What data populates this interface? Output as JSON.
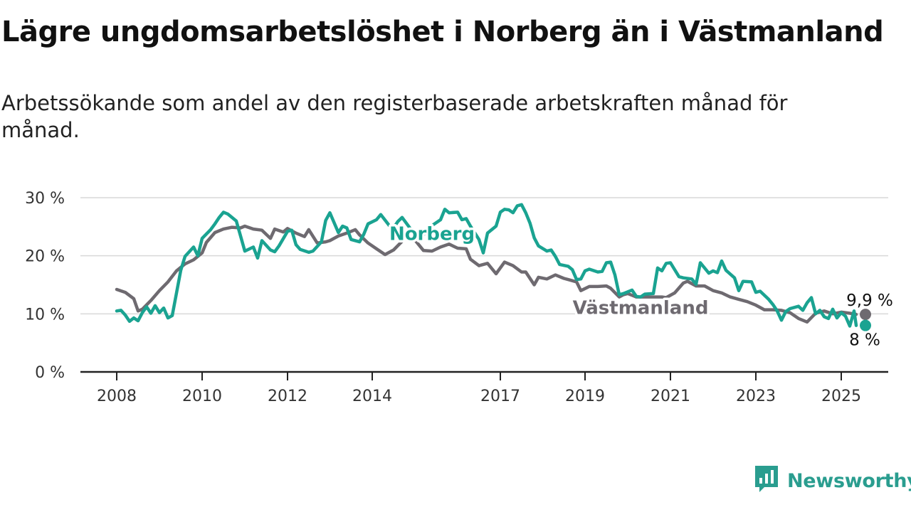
{
  "title": "Lägre ungdomsarbetslöshet i Norberg än i Västmanland",
  "subtitle": "Arbetssökande som andel av den registerbaserade arbetskraften månad för månad.",
  "brand": {
    "name": "Newsworthy",
    "icon": "newsworthy-logo-icon"
  },
  "colors": {
    "norberg": "#1aa391",
    "vastmanland": "#6e6a70",
    "grid": "#d9d9d9",
    "axis": "#222222"
  },
  "chart_data": {
    "type": "line",
    "title": "Lägre ungdomsarbetslöshet i Norberg än i Västmanland",
    "xlabel": "",
    "ylabel": "",
    "xlim": [
      2008.0,
      2025.6
    ],
    "ylim": [
      0,
      30
    ],
    "x_ticks": [
      2008,
      2010,
      2012,
      2014,
      2017,
      2019,
      2021,
      2023,
      2025
    ],
    "x_tick_labels": [
      "2008",
      "2010",
      "2012",
      "2014",
      "2017",
      "2019",
      "2021",
      "2023",
      "2025"
    ],
    "y_ticks": [
      0,
      10,
      20,
      30
    ],
    "y_tick_labels": [
      "0 %",
      "10 %",
      "20 %",
      "30 %"
    ],
    "grid": true,
    "series": [
      {
        "name": "Västmanland",
        "color": "#6e6a70",
        "end_label": "9,9 %",
        "points": [
          [
            2008.0,
            14.2
          ],
          [
            2008.2,
            13.7
          ],
          [
            2008.4,
            12.6
          ],
          [
            2008.5,
            10.5
          ],
          [
            2008.6,
            10.8
          ],
          [
            2008.8,
            12.3
          ],
          [
            2009.0,
            14.0
          ],
          [
            2009.2,
            15.5
          ],
          [
            2009.4,
            17.4
          ],
          [
            2009.6,
            18.6
          ],
          [
            2009.8,
            19.3
          ],
          [
            2010.0,
            20.5
          ],
          [
            2010.1,
            22.3
          ],
          [
            2010.3,
            24.0
          ],
          [
            2010.5,
            24.6
          ],
          [
            2010.7,
            24.9
          ],
          [
            2010.9,
            24.8
          ],
          [
            2011.0,
            25.1
          ],
          [
            2011.2,
            24.6
          ],
          [
            2011.4,
            24.4
          ],
          [
            2011.6,
            23.0
          ],
          [
            2011.7,
            24.6
          ],
          [
            2011.9,
            24.1
          ],
          [
            2012.0,
            24.7
          ],
          [
            2012.2,
            23.9
          ],
          [
            2012.4,
            23.3
          ],
          [
            2012.5,
            24.5
          ],
          [
            2012.7,
            22.2
          ],
          [
            2012.9,
            22.4
          ],
          [
            2013.0,
            22.6
          ],
          [
            2013.2,
            23.4
          ],
          [
            2013.4,
            23.9
          ],
          [
            2013.6,
            24.5
          ],
          [
            2013.7,
            23.6
          ],
          [
            2013.9,
            22.2
          ],
          [
            2014.1,
            21.2
          ],
          [
            2014.3,
            20.2
          ],
          [
            2014.5,
            21.0
          ],
          [
            2014.7,
            22.5
          ],
          [
            2014.9,
            23.7
          ],
          [
            2015.0,
            22.7
          ],
          [
            2015.2,
            20.9
          ],
          [
            2015.4,
            20.8
          ],
          [
            2015.6,
            21.5
          ],
          [
            2015.8,
            22.0
          ],
          [
            2016.0,
            21.3
          ],
          [
            2016.2,
            21.2
          ],
          [
            2016.3,
            19.4
          ],
          [
            2016.5,
            18.3
          ],
          [
            2016.7,
            18.7
          ],
          [
            2016.9,
            16.9
          ],
          [
            2017.1,
            18.9
          ],
          [
            2017.3,
            18.3
          ],
          [
            2017.5,
            17.2
          ],
          [
            2017.6,
            17.2
          ],
          [
            2017.8,
            15.0
          ],
          [
            2017.9,
            16.3
          ],
          [
            2018.1,
            16.0
          ],
          [
            2018.3,
            16.7
          ],
          [
            2018.5,
            16.1
          ],
          [
            2018.6,
            15.9
          ],
          [
            2018.8,
            15.5
          ],
          [
            2018.9,
            14.0
          ],
          [
            2019.1,
            14.7
          ],
          [
            2019.3,
            14.7
          ],
          [
            2019.5,
            14.8
          ],
          [
            2019.6,
            14.4
          ],
          [
            2019.8,
            12.9
          ],
          [
            2019.9,
            13.3
          ],
          [
            2020.0,
            13.5
          ],
          [
            2020.2,
            12.9
          ],
          [
            2020.4,
            12.9
          ],
          [
            2020.6,
            12.9
          ],
          [
            2020.8,
            12.9
          ],
          [
            2020.9,
            12.8
          ],
          [
            2021.1,
            13.6
          ],
          [
            2021.3,
            15.3
          ],
          [
            2021.4,
            15.6
          ],
          [
            2021.6,
            14.8
          ],
          [
            2021.8,
            14.8
          ],
          [
            2022.0,
            14.0
          ],
          [
            2022.2,
            13.6
          ],
          [
            2022.4,
            12.9
          ],
          [
            2022.6,
            12.5
          ],
          [
            2022.8,
            12.1
          ],
          [
            2023.0,
            11.5
          ],
          [
            2023.2,
            10.7
          ],
          [
            2023.4,
            10.7
          ],
          [
            2023.6,
            10.6
          ],
          [
            2023.8,
            10.2
          ],
          [
            2024.0,
            9.2
          ],
          [
            2024.2,
            8.6
          ],
          [
            2024.4,
            10.1
          ],
          [
            2024.6,
            10.5
          ],
          [
            2024.8,
            10.0
          ],
          [
            2025.0,
            10.3
          ],
          [
            2025.2,
            10.1
          ],
          [
            2025.35,
            9.9
          ]
        ]
      },
      {
        "name": "Norberg",
        "color": "#1aa391",
        "end_label": "8 %",
        "points": [
          [
            2008.0,
            10.5
          ],
          [
            2008.1,
            10.6
          ],
          [
            2008.2,
            9.8
          ],
          [
            2008.3,
            8.7
          ],
          [
            2008.4,
            9.3
          ],
          [
            2008.5,
            8.8
          ],
          [
            2008.6,
            10.2
          ],
          [
            2008.7,
            11.2
          ],
          [
            2008.8,
            10.1
          ],
          [
            2008.9,
            11.4
          ],
          [
            2009.0,
            10.2
          ],
          [
            2009.1,
            11.0
          ],
          [
            2009.2,
            9.3
          ],
          [
            2009.3,
            9.7
          ],
          [
            2009.5,
            17.5
          ],
          [
            2009.6,
            19.9
          ],
          [
            2009.8,
            21.5
          ],
          [
            2009.9,
            20.0
          ],
          [
            2010.0,
            23.0
          ],
          [
            2010.2,
            24.5
          ],
          [
            2010.3,
            25.5
          ],
          [
            2010.4,
            26.6
          ],
          [
            2010.5,
            27.5
          ],
          [
            2010.6,
            27.2
          ],
          [
            2010.8,
            26.0
          ],
          [
            2010.9,
            23.4
          ],
          [
            2011.0,
            20.8
          ],
          [
            2011.2,
            21.5
          ],
          [
            2011.3,
            19.6
          ],
          [
            2011.4,
            22.6
          ],
          [
            2011.6,
            21.0
          ],
          [
            2011.7,
            20.7
          ],
          [
            2011.8,
            21.7
          ],
          [
            2012.0,
            24.2
          ],
          [
            2012.1,
            24.4
          ],
          [
            2012.2,
            21.9
          ],
          [
            2012.3,
            21.1
          ],
          [
            2012.5,
            20.6
          ],
          [
            2012.6,
            20.8
          ],
          [
            2012.8,
            22.4
          ],
          [
            2012.9,
            26.1
          ],
          [
            2013.0,
            27.4
          ],
          [
            2013.2,
            24.0
          ],
          [
            2013.3,
            25.1
          ],
          [
            2013.4,
            24.8
          ],
          [
            2013.5,
            22.8
          ],
          [
            2013.7,
            22.4
          ],
          [
            2013.8,
            23.7
          ],
          [
            2013.9,
            25.5
          ],
          [
            2014.1,
            26.2
          ],
          [
            2014.2,
            27.1
          ],
          [
            2014.4,
            25.2
          ],
          [
            2014.5,
            24.8
          ],
          [
            2014.6,
            25.9
          ],
          [
            2014.7,
            26.6
          ],
          [
            2014.9,
            24.6
          ],
          [
            2015.0,
            22.8
          ],
          [
            2015.2,
            23.6
          ],
          [
            2015.3,
            24.7
          ],
          [
            2015.4,
            25.2
          ],
          [
            2015.6,
            26.2
          ],
          [
            2015.7,
            28.0
          ],
          [
            2015.8,
            27.4
          ],
          [
            2016.0,
            27.5
          ],
          [
            2016.1,
            26.2
          ],
          [
            2016.2,
            26.4
          ],
          [
            2016.3,
            25.1
          ],
          [
            2016.5,
            22.8
          ],
          [
            2016.6,
            20.5
          ],
          [
            2016.7,
            23.9
          ],
          [
            2016.9,
            25.1
          ],
          [
            2017.0,
            27.5
          ],
          [
            2017.1,
            28.0
          ],
          [
            2017.2,
            27.9
          ],
          [
            2017.3,
            27.4
          ],
          [
            2017.4,
            28.6
          ],
          [
            2017.5,
            28.8
          ],
          [
            2017.6,
            27.4
          ],
          [
            2017.7,
            25.6
          ],
          [
            2017.8,
            23.1
          ],
          [
            2017.9,
            21.7
          ],
          [
            2018.1,
            20.8
          ],
          [
            2018.2,
            21.0
          ],
          [
            2018.3,
            19.9
          ],
          [
            2018.4,
            18.5
          ],
          [
            2018.6,
            18.2
          ],
          [
            2018.7,
            17.6
          ],
          [
            2018.8,
            15.9
          ],
          [
            2018.9,
            16.0
          ],
          [
            2019.0,
            17.4
          ],
          [
            2019.1,
            17.7
          ],
          [
            2019.3,
            17.2
          ],
          [
            2019.4,
            17.3
          ],
          [
            2019.5,
            18.8
          ],
          [
            2019.6,
            18.9
          ],
          [
            2019.7,
            16.7
          ],
          [
            2019.8,
            13.3
          ],
          [
            2019.9,
            13.5
          ],
          [
            2020.1,
            14.1
          ],
          [
            2020.2,
            13.0
          ],
          [
            2020.3,
            12.9
          ],
          [
            2020.4,
            13.4
          ],
          [
            2020.6,
            13.5
          ],
          [
            2020.7,
            17.9
          ],
          [
            2020.8,
            17.4
          ],
          [
            2020.9,
            18.7
          ],
          [
            2021.0,
            18.8
          ],
          [
            2021.2,
            16.4
          ],
          [
            2021.3,
            16.2
          ],
          [
            2021.5,
            16.0
          ],
          [
            2021.6,
            15.1
          ],
          [
            2021.7,
            18.8
          ],
          [
            2021.9,
            17.0
          ],
          [
            2022.0,
            17.4
          ],
          [
            2022.1,
            17.1
          ],
          [
            2022.2,
            19.1
          ],
          [
            2022.3,
            17.5
          ],
          [
            2022.5,
            16.2
          ],
          [
            2022.6,
            14.0
          ],
          [
            2022.7,
            15.6
          ],
          [
            2022.9,
            15.5
          ],
          [
            2023.0,
            13.7
          ],
          [
            2023.1,
            13.9
          ],
          [
            2023.3,
            12.5
          ],
          [
            2023.4,
            11.6
          ],
          [
            2023.5,
            10.5
          ],
          [
            2023.6,
            8.9
          ],
          [
            2023.7,
            10.4
          ],
          [
            2023.8,
            10.9
          ],
          [
            2024.0,
            11.3
          ],
          [
            2024.1,
            10.6
          ],
          [
            2024.2,
            11.9
          ],
          [
            2024.3,
            12.8
          ],
          [
            2024.4,
            10.0
          ],
          [
            2024.5,
            10.6
          ],
          [
            2024.6,
            9.5
          ],
          [
            2024.7,
            9.2
          ],
          [
            2024.8,
            10.8
          ],
          [
            2024.9,
            9.3
          ],
          [
            2025.0,
            10.2
          ],
          [
            2025.1,
            9.6
          ],
          [
            2025.2,
            7.9
          ],
          [
            2025.3,
            10.5
          ],
          [
            2025.35,
            8.0
          ]
        ]
      }
    ],
    "annotations": [
      {
        "text": "Norberg",
        "series": "Norberg",
        "x": 2015.4,
        "y": 23.8
      },
      {
        "text": "Västmanland",
        "series": "Västmanland",
        "x": 2020.3,
        "y": 11.1
      }
    ]
  }
}
